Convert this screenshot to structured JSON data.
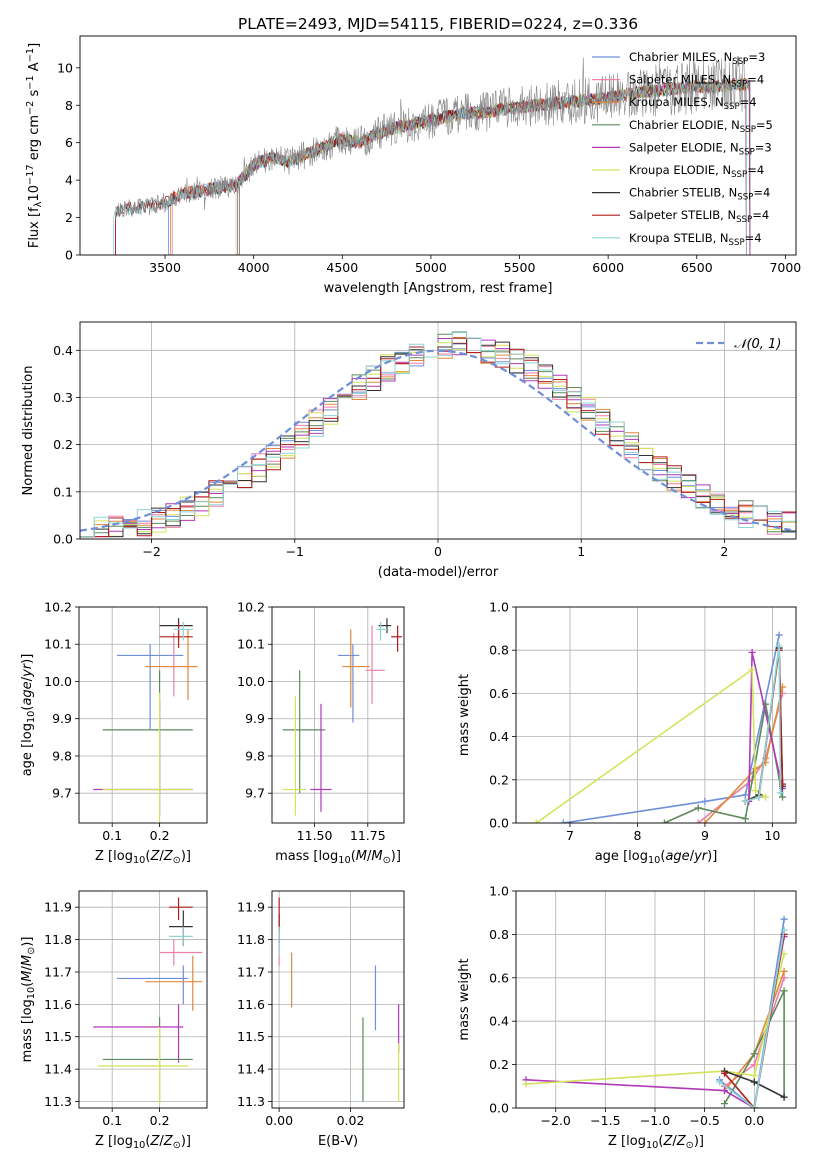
{
  "title": "PLATE=2493, MJD=54115, FIBERID=0224, z=0.336",
  "colors": {
    "Chabrier MILES": "#6f8fd8",
    "Salpeter MILES": "#ee7fa9",
    "Kroupa MILES": "#e08a3c",
    "Chabrier ELODIE": "#5e8a5e",
    "Salpeter ELODIE": "#b03ab8",
    "Kroupa ELODIE": "#d4e25c",
    "Chabrier STELIB": "#333333",
    "Salpeter STELIB": "#b01d1d",
    "Kroupa STELIB": "#8fd4d4",
    "normal": "#6f8fd8"
  },
  "legend_top": [
    "Chabrier MILES, N<sub>SSP</sub>=3",
    "Salpeter MILES, N<sub>SSP</sub>=4",
    "Kroupa MILES, N<sub>SSP</sub>=4",
    "Chabrier ELODIE, N<sub>SSP</sub>=5",
    "Salpeter ELODIE, N<sub>SSP</sub>=3",
    "Kroupa ELODIE, N<sub>SSP</sub>=4",
    "Chabrier STELIB, N<sub>SSP</sub>=4",
    "Salpeter STELIB, N<sub>SSP</sub>=4",
    "Kroupa STELIB, N<sub>SSP</sub>=4"
  ],
  "chart_data": [
    {
      "id": "spectrum",
      "type": "line",
      "xlabel": "wavelength [Angstrom, rest frame]",
      "ylabel": "Flux [f<sub>λ</sub>10<sup>−17</sup> erg cm<sup>−2</sup> s<sup>−1</sup> A<sup>−1</sup>]",
      "xlim": [
        3020,
        7060
      ],
      "ylim": [
        0,
        11.7
      ],
      "xticks": [
        3500,
        4000,
        4500,
        5000,
        5500,
        6000,
        6500,
        7000
      ],
      "yticks": [
        0,
        2,
        4,
        6,
        8,
        10
      ],
      "continuum": {
        "x": [
          3220,
          3300,
          3400,
          3500,
          3600,
          3700,
          3800,
          3900,
          4000,
          4100,
          4200,
          4300,
          4400,
          4500,
          4600,
          4700,
          4800,
          4900,
          5000,
          5100,
          5200,
          5300,
          5400,
          5500,
          5600,
          5700,
          5800,
          5900,
          6000,
          6100,
          6200,
          6300,
          6400,
          6500,
          6600,
          6700,
          6780
        ],
        "y": [
          2.3,
          2.5,
          2.6,
          2.8,
          3.3,
          3.4,
          3.6,
          3.7,
          4.8,
          5.2,
          5.0,
          5.4,
          5.8,
          6.2,
          6.0,
          6.5,
          6.8,
          7.0,
          7.2,
          7.4,
          7.6,
          7.6,
          7.8,
          7.9,
          8.0,
          8.1,
          8.2,
          8.3,
          8.4,
          8.6,
          8.7,
          8.8,
          8.9,
          9.0,
          9.0,
          9.1,
          9.1
        ]
      },
      "series_ranges": [
        {
          "name": "Chabrier MILES",
          "x": [
            3520,
            6800
          ]
        },
        {
          "name": "Salpeter MILES",
          "x": [
            3540,
            6800
          ]
        },
        {
          "name": "Kroupa MILES",
          "x": [
            3530,
            6800
          ]
        },
        {
          "name": "Chabrier ELODIE",
          "x": [
            3920,
            6800
          ]
        },
        {
          "name": "Salpeter ELODIE",
          "x": [
            3910,
            6800
          ]
        },
        {
          "name": "Kroupa ELODIE",
          "x": [
            3900,
            6780
          ]
        },
        {
          "name": "Chabrier STELIB",
          "x": [
            3220,
            6780
          ]
        },
        {
          "name": "Salpeter STELIB",
          "x": [
            3220,
            6780
          ]
        },
        {
          "name": "Kroupa STELIB",
          "x": [
            3210,
            6780
          ]
        }
      ]
    },
    {
      "id": "residuals",
      "type": "bar",
      "xlabel": "(data-model)/error",
      "ylabel": "Normed distribution",
      "xlim": [
        -2.5,
        2.5
      ],
      "ylim": [
        0,
        0.46
      ],
      "xticks": [
        -2,
        -1,
        0,
        1,
        2
      ],
      "yticks": [
        0.0,
        0.1,
        0.2,
        0.3,
        0.4
      ],
      "bin_width": 0.1,
      "bin_start": -2.5,
      "legend_label": "𝒩(0, 1)",
      "grid": true
    },
    {
      "id": "age_vs_Z",
      "type": "scatter",
      "xlabel": "Z [log<sub>10</sub>(<i>Z</i>/<i>Z</i><sub>⊙</sub>)]",
      "ylabel": "age  [log<sub>10</sub>(<i>age</i>/<i>yr</i>)]",
      "xlim": [
        0.03,
        0.3
      ],
      "ylim": [
        9.62,
        10.2
      ],
      "xticks": [
        0.1,
        0.2
      ],
      "yticks": [
        9.7,
        9.8,
        9.9,
        10.0,
        10.1,
        10.2
      ],
      "grid": true,
      "points": [
        {
          "name": "Chabrier MILES",
          "x": 0.18,
          "xe": [
            0.11,
            0.25
          ],
          "y": 10.07,
          "ye": [
            9.87,
            10.1
          ]
        },
        {
          "name": "Salpeter MILES",
          "x": 0.23,
          "xe": [
            0.2,
            0.28
          ],
          "y": 10.04,
          "ye": [
            9.96,
            10.13
          ]
        },
        {
          "name": "Kroupa MILES",
          "x": 0.26,
          "xe": [
            0.17,
            0.28
          ],
          "y": 10.04,
          "ye": [
            9.95,
            10.14
          ]
        },
        {
          "name": "Chabrier ELODIE",
          "x": 0.2,
          "xe": [
            0.08,
            0.27
          ],
          "y": 9.87,
          "ye": [
            9.7,
            10.03
          ]
        },
        {
          "name": "Salpeter ELODIE",
          "x": 0.2,
          "xe": [
            0.06,
            0.27
          ],
          "y": 9.71,
          "ye": [
            9.64,
            9.95
          ]
        },
        {
          "name": "Kroupa ELODIE",
          "x": 0.2,
          "xe": [
            0.08,
            0.27
          ],
          "y": 9.71,
          "ye": [
            9.62,
            9.97
          ]
        },
        {
          "name": "Chabrier STELIB",
          "x": 0.24,
          "xe": [
            0.2,
            0.27
          ],
          "y": 10.15,
          "ye": [
            10.11,
            10.17
          ]
        },
        {
          "name": "Salpeter STELIB",
          "x": 0.24,
          "xe": [
            0.2,
            0.27
          ],
          "y": 10.12,
          "ye": [
            10.09,
            10.16
          ]
        },
        {
          "name": "Kroupa STELIB",
          "x": 0.25,
          "xe": [
            0.23,
            0.27
          ],
          "y": 10.14,
          "ye": [
            10.11,
            10.16
          ]
        }
      ]
    },
    {
      "id": "age_vs_mass",
      "type": "scatter",
      "xlabel": "mass [log<sub>10</sub>(<i>M</i>/<i>M</i><sub>⊙</sub>)]",
      "ylabel": "",
      "xlim": [
        11.3,
        11.92
      ],
      "ylim": [
        9.62,
        10.2
      ],
      "xticks": [
        11.5,
        11.75
      ],
      "yticks": [
        9.7,
        9.8,
        9.9,
        10.0,
        10.1,
        10.2
      ],
      "grid": true,
      "points": [
        {
          "name": "Chabrier MILES",
          "x": 11.68,
          "xe": [
            11.61,
            11.71
          ],
          "y": 10.07,
          "ye": [
            9.89,
            10.1
          ]
        },
        {
          "name": "Salpeter MILES",
          "x": 11.77,
          "xe": [
            11.74,
            11.83
          ],
          "y": 10.03,
          "ye": [
            9.94,
            10.15
          ]
        },
        {
          "name": "Kroupa MILES",
          "x": 11.67,
          "xe": [
            11.63,
            11.76
          ],
          "y": 10.04,
          "ye": [
            9.93,
            10.14
          ]
        },
        {
          "name": "Chabrier ELODIE",
          "x": 11.43,
          "xe": [
            11.35,
            11.55
          ],
          "y": 9.87,
          "ye": [
            9.7,
            10.03
          ]
        },
        {
          "name": "Salpeter ELODIE",
          "x": 11.53,
          "xe": [
            11.48,
            11.58
          ],
          "y": 9.71,
          "ye": [
            9.65,
            9.94
          ]
        },
        {
          "name": "Kroupa ELODIE",
          "x": 11.41,
          "xe": [
            11.35,
            11.46
          ],
          "y": 9.71,
          "ye": [
            9.64,
            9.96
          ]
        },
        {
          "name": "Chabrier STELIB",
          "x": 11.84,
          "xe": [
            11.8,
            11.86
          ],
          "y": 10.15,
          "ye": [
            10.13,
            10.17
          ]
        },
        {
          "name": "Salpeter STELIB",
          "x": 11.89,
          "xe": [
            11.86,
            11.91
          ],
          "y": 10.12,
          "ye": [
            10.08,
            10.15
          ]
        },
        {
          "name": "Kroupa STELIB",
          "x": 11.81,
          "xe": [
            11.79,
            11.84
          ],
          "y": 10.14,
          "ye": [
            10.11,
            10.16
          ]
        }
      ]
    },
    {
      "id": "weight_vs_age",
      "type": "line",
      "xlabel": "age  [log<sub>10</sub>(<i>age</i>/<i>yr</i>)]",
      "ylabel": "mass weight",
      "xlim": [
        6.2,
        10.35
      ],
      "ylim": [
        0,
        1.0
      ],
      "xticks": [
        7,
        8,
        9,
        10
      ],
      "yticks": [
        0.0,
        0.2,
        0.4,
        0.6,
        0.8,
        1.0
      ],
      "grid": true,
      "series": [
        {
          "name": "Chabrier MILES",
          "x": [
            6.9,
            9.0,
            9.6,
            10.1
          ],
          "y": [
            0.0,
            0.1,
            0.13,
            0.87
          ]
        },
        {
          "name": "Salpeter MILES",
          "x": [
            8.9,
            9.7,
            9.9,
            10.15
          ],
          "y": [
            0.0,
            0.2,
            0.3,
            0.6
          ]
        },
        {
          "name": "Kroupa MILES",
          "x": [
            9.0,
            9.75,
            9.9,
            10.15
          ],
          "y": [
            0.0,
            0.25,
            0.28,
            0.63
          ]
        },
        {
          "name": "Chabrier ELODIE",
          "x": [
            8.4,
            8.9,
            9.6,
            9.9,
            10.15
          ],
          "y": [
            0.0,
            0.07,
            0.02,
            0.55,
            0.12
          ]
        },
        {
          "name": "Salpeter ELODIE",
          "x": [
            9.65,
            9.7,
            10.15
          ],
          "y": [
            0.1,
            0.79,
            0.16
          ]
        },
        {
          "name": "Kroupa ELODIE",
          "x": [
            6.5,
            9.7,
            9.75,
            9.9
          ],
          "y": [
            0.0,
            0.71,
            0.15,
            0.12
          ]
        },
        {
          "name": "Chabrier STELIB",
          "x": [
            9.6,
            9.8,
            10.1,
            10.15
          ],
          "y": [
            0.1,
            0.13,
            0.81,
            0.17
          ]
        },
        {
          "name": "Salpeter STELIB",
          "x": [
            9.6,
            9.8,
            10.1,
            10.15
          ],
          "y": [
            0.1,
            0.12,
            0.8,
            0.18
          ]
        },
        {
          "name": "Kroupa STELIB",
          "x": [
            9.6,
            9.8,
            10.1,
            10.12
          ],
          "y": [
            0.1,
            0.12,
            0.82,
            0.14
          ]
        }
      ]
    },
    {
      "id": "mass_vs_Z",
      "type": "scatter",
      "xlabel": "Z [log<sub>10</sub>(<i>Z</i>/<i>Z</i><sub>⊙</sub>)]",
      "ylabel": "mass [log<sub>10</sub>(<i>M</i>/<i>M</i><sub>⊙</sub>)]",
      "xlim": [
        0.03,
        0.3
      ],
      "ylim": [
        11.28,
        11.95
      ],
      "xticks": [
        0.1,
        0.2
      ],
      "yticks": [
        11.3,
        11.4,
        11.5,
        11.6,
        11.7,
        11.8,
        11.9
      ],
      "grid": true,
      "points": [
        {
          "name": "Chabrier MILES",
          "x": 0.25,
          "xe": [
            0.11,
            0.26
          ],
          "y": 11.68,
          "ye": [
            11.6,
            11.72
          ]
        },
        {
          "name": "Salpeter MILES",
          "x": 0.23,
          "xe": [
            0.2,
            0.29
          ],
          "y": 11.76,
          "ye": [
            11.72,
            11.8
          ]
        },
        {
          "name": "Kroupa MILES",
          "x": 0.27,
          "xe": [
            0.17,
            0.29
          ],
          "y": 11.67,
          "ye": [
            11.58,
            11.75
          ]
        },
        {
          "name": "Chabrier ELODIE",
          "x": 0.2,
          "xe": [
            0.08,
            0.27
          ],
          "y": 11.43,
          "ye": [
            11.3,
            11.56
          ]
        },
        {
          "name": "Salpeter ELODIE",
          "x": 0.24,
          "xe": [
            0.06,
            0.25
          ],
          "y": 11.53,
          "ye": [
            11.42,
            11.6
          ]
        },
        {
          "name": "Kroupa ELODIE",
          "x": 0.2,
          "xe": [
            0.07,
            0.26
          ],
          "y": 11.41,
          "ye": [
            11.29,
            11.53
          ]
        },
        {
          "name": "Chabrier STELIB",
          "x": 0.25,
          "xe": [
            0.22,
            0.27
          ],
          "y": 11.84,
          "ye": [
            11.78,
            11.89
          ]
        },
        {
          "name": "Salpeter STELIB",
          "x": 0.24,
          "xe": [
            0.22,
            0.27
          ],
          "y": 11.9,
          "ye": [
            11.86,
            11.93
          ]
        },
        {
          "name": "Kroupa STELIB",
          "x": 0.25,
          "xe": [
            0.22,
            0.27
          ],
          "y": 11.81,
          "ye": [
            11.78,
            11.84
          ]
        }
      ]
    },
    {
      "id": "mass_vs_ebv",
      "type": "scatter",
      "xlabel": "E(B-V)",
      "ylabel": "",
      "xlim": [
        -0.002,
        0.035
      ],
      "ylim": [
        11.28,
        11.95
      ],
      "xticks": [
        0.0,
        0.02
      ],
      "yticks": [
        11.3,
        11.4,
        11.5,
        11.6,
        11.7,
        11.8,
        11.9
      ],
      "grid": true,
      "points": [
        {
          "name": "Chabrier MILES",
          "x": 0.027,
          "y": 11.62,
          "ye": [
            11.52,
            11.72
          ]
        },
        {
          "name": "Salpeter MILES",
          "x": 0.0,
          "y": 11.76,
          "ye": [
            11.72,
            11.8
          ]
        },
        {
          "name": "Kroupa MILES",
          "x": 0.0035,
          "y": 11.67,
          "ye": [
            11.59,
            11.76
          ]
        },
        {
          "name": "Chabrier ELODIE",
          "x": 0.0235,
          "y": 11.43,
          "ye": [
            11.3,
            11.56
          ]
        },
        {
          "name": "Salpeter ELODIE",
          "x": 0.0335,
          "y": 11.53,
          "ye": [
            11.45,
            11.6
          ]
        },
        {
          "name": "Kroupa ELODIE",
          "x": 0.0335,
          "y": 11.41,
          "ye": [
            11.3,
            11.48
          ]
        },
        {
          "name": "Chabrier STELIB",
          "x": 0.0,
          "y": 11.84,
          "ye": [
            11.79,
            11.88
          ]
        },
        {
          "name": "Salpeter STELIB",
          "x": 0.0,
          "y": 11.88,
          "ye": [
            11.82,
            11.93
          ]
        },
        {
          "name": "Kroupa STELIB",
          "x": 0.0,
          "y": 11.8,
          "ye": [
            11.75,
            11.84
          ]
        }
      ]
    },
    {
      "id": "weight_vs_Z",
      "type": "line",
      "xlabel": "Z [log<sub>10</sub>(<i>Z</i>/<i>Z</i><sub>⊙</sub>)]",
      "ylabel": "mass weight",
      "xlim": [
        -2.4,
        0.42
      ],
      "ylim": [
        0,
        1.0
      ],
      "xticks": [
        -2.0,
        -1.5,
        -1.0,
        -0.5,
        0.0
      ],
      "yticks": [
        0.0,
        0.2,
        0.4,
        0.6,
        0.8,
        1.0
      ],
      "grid": true,
      "series": [
        {
          "name": "Chabrier MILES",
          "x": [
            -0.35,
            0.0,
            0.3
          ],
          "y": [
            0.13,
            0.0,
            0.87
          ]
        },
        {
          "name": "Salpeter MILES",
          "x": [
            -0.3,
            0.0,
            0.3
          ],
          "y": [
            0.1,
            0.2,
            0.6
          ]
        },
        {
          "name": "Kroupa MILES",
          "x": [
            -0.3,
            0.0,
            0.3
          ],
          "y": [
            0.08,
            0.25,
            0.63
          ]
        },
        {
          "name": "Chabrier ELODIE",
          "x": [
            -0.3,
            0.0,
            0.3,
            0.3
          ],
          "y": [
            0.02,
            0.25,
            0.54,
            0.05
          ]
        },
        {
          "name": "Salpeter ELODIE",
          "x": [
            -2.3,
            -0.3,
            0.0,
            0.3
          ],
          "y": [
            0.13,
            0.08,
            0.0,
            0.79
          ]
        },
        {
          "name": "Kroupa ELODIE",
          "x": [
            -2.3,
            -0.3,
            0.0,
            0.3
          ],
          "y": [
            0.11,
            0.17,
            0.15,
            0.71
          ]
        },
        {
          "name": "Chabrier STELIB",
          "x": [
            -0.3,
            0.0,
            0.3
          ],
          "y": [
            0.17,
            0.12,
            0.05
          ]
        },
        {
          "name": "Salpeter STELIB",
          "x": [
            -0.3,
            0.0,
            0.3
          ],
          "y": [
            0.16,
            0.0,
            0.8
          ]
        },
        {
          "name": "Kroupa STELIB",
          "x": [
            -0.35,
            0.0,
            0.3
          ],
          "y": [
            0.12,
            0.0,
            0.82
          ]
        }
      ]
    }
  ]
}
